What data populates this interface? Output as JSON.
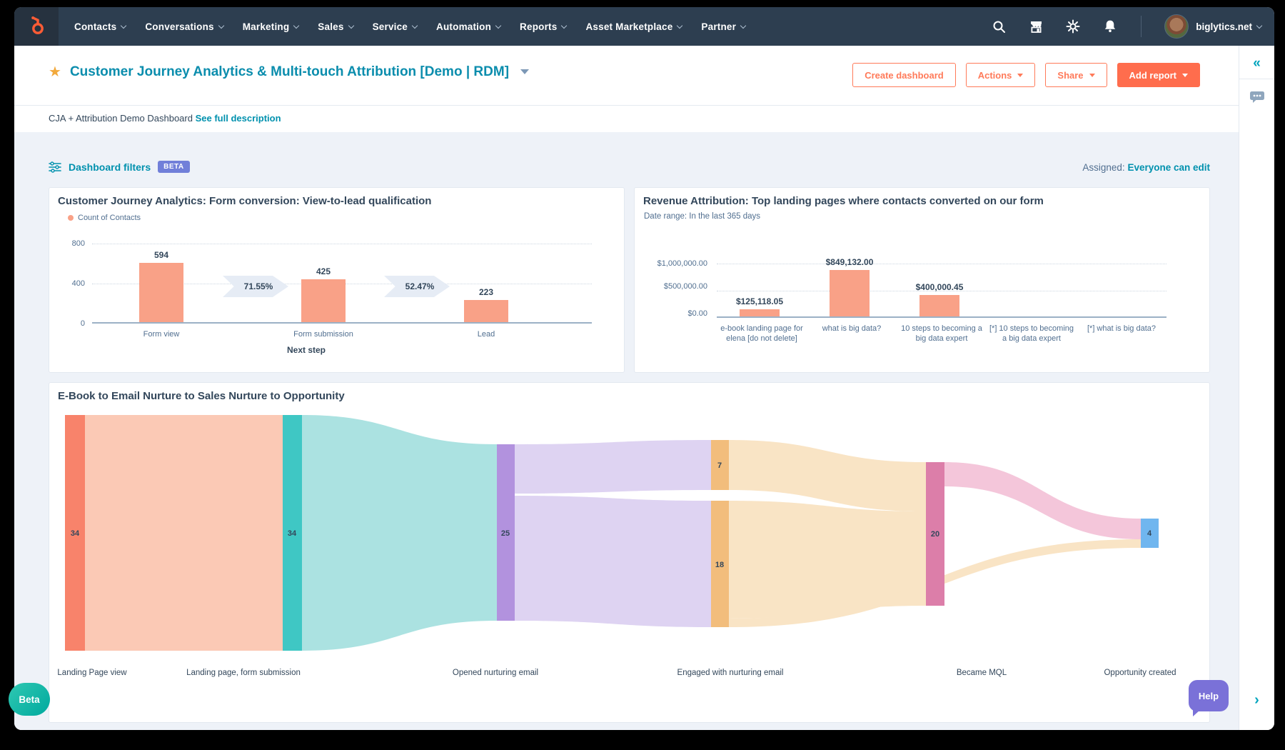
{
  "nav": {
    "items": [
      "Contacts",
      "Conversations",
      "Marketing",
      "Sales",
      "Service",
      "Automation",
      "Reports",
      "Asset Marketplace",
      "Partner"
    ],
    "account_name": "biglytics.net"
  },
  "header": {
    "title": "Customer Journey Analytics & Multi-touch Attribution [Demo | RDM]",
    "buttons": {
      "create_dashboard": "Create dashboard",
      "actions": "Actions",
      "share": "Share",
      "add_report": "Add report"
    },
    "description": "CJA + Attribution Demo Dashboard",
    "description_link": "See full description"
  },
  "filters_bar": {
    "label": "Dashboard filters",
    "beta_badge": "BETA",
    "assigned_label": "Assigned:",
    "assigned_value": "Everyone can edit"
  },
  "chart_data": [
    {
      "id": "form_conversion",
      "type": "bar",
      "title": "Customer Journey Analytics: Form conversion: View-to-lead qualification",
      "legend": [
        "Count of Contacts"
      ],
      "categories": [
        "Form view",
        "Form submission",
        "Lead"
      ],
      "values": [
        594,
        425,
        223
      ],
      "value_labels": [
        "594",
        "425",
        "223"
      ],
      "conversion_labels": [
        "71.55%",
        "52.47%"
      ],
      "xlabel": "Next step",
      "yticks": [
        "800",
        "400",
        "0"
      ],
      "ylim": [
        0,
        800
      ],
      "bar_color": "#f9a187",
      "grid": "dotted horizontal"
    },
    {
      "id": "revenue_attribution",
      "type": "bar",
      "title": "Revenue Attribution: Top landing pages where contacts converted on our form",
      "subtitle": "Date range: In the last 365 days",
      "categories": [
        "e-book landing page for elena [do not delete]",
        "what is big data?",
        "10 steps to becoming a big data expert",
        "[*] 10 steps to becoming a big data expert",
        "[*] what is big data?"
      ],
      "values": [
        125118.05,
        849132,
        400000.45,
        0,
        0
      ],
      "value_labels": [
        "$125,118.05",
        "$849,132.00",
        "$400,000.45",
        "",
        ""
      ],
      "yticks": [
        "$1,000,000.00",
        "$500,000.00",
        "$0.00"
      ],
      "ylim": [
        0,
        1000000
      ],
      "bar_color": "#f9a187",
      "grid": "dotted horizontal"
    },
    {
      "id": "journey_sankey",
      "type": "sankey",
      "title": "E-Book to Email Nurture to Sales Nurture to Opportunity",
      "stages": [
        "Landing Page view",
        "Landing page, form submission",
        "Opened nurturing email",
        "Engaged with nurturing email",
        "Became MQL",
        "Opportunity created"
      ],
      "nodes": [
        {
          "stage": "Landing Page view",
          "label": "34",
          "value": 34,
          "color": "#f8836b"
        },
        {
          "stage": "Landing page, form submission",
          "label": "34",
          "value": 34,
          "color": "#3fc7c4"
        },
        {
          "stage": "Opened nurturing email",
          "label": "25",
          "value": 25,
          "color": "#b292de"
        },
        {
          "stage": "Engaged with nurturing email",
          "label": "7",
          "value": 7,
          "color": "#f2bd7c"
        },
        {
          "stage": "Engaged with nurturing email",
          "label": "18",
          "value": 18,
          "color": "#f2bd7c"
        },
        {
          "stage": "Became MQL",
          "label": "20",
          "value": 20,
          "color": "#dc7ea9"
        },
        {
          "stage": "Opportunity created",
          "label": "4",
          "value": 4,
          "color": "#70b6ef"
        }
      ],
      "links": [
        {
          "from": "Landing Page view",
          "to": "Landing page, form submission",
          "color": "#fbc9b5"
        },
        {
          "from": "Landing page, form submission",
          "to": "Opened nurturing email",
          "color": "#abe2e1"
        },
        {
          "from": "Opened nurturing email",
          "to": "Engaged with nurturing email (7)",
          "color": "#ded3f2"
        },
        {
          "from": "Opened nurturing email",
          "to": "Engaged with nurturing email (18)",
          "color": "#ded3f2"
        },
        {
          "from": "Engaged with nurturing email (7)",
          "to": "Became MQL",
          "color": "#f9e4c5"
        },
        {
          "from": "Engaged with nurturing email (18)",
          "to": "Became MQL",
          "color": "#f9e4c5"
        },
        {
          "from": "Engaged with nurturing email (18)",
          "to": "Opportunity created",
          "color": "#f9e4c5"
        },
        {
          "from": "Became MQL",
          "to": "Opportunity created",
          "color": "#f4c6da"
        }
      ]
    }
  ],
  "floating": {
    "beta_label": "Beta",
    "help_label": "Help"
  },
  "colors": {
    "navbar": "#2d3e50",
    "accent_orange": "#ff7a59",
    "cta_orange": "#ff6d4d",
    "teal_link": "#0091ae",
    "navy_text": "#33475b",
    "bar_color": "#f9a187",
    "beta_badge": "#717fd9",
    "help_purple": "#7a71d8",
    "beta_pill_teal": "#00bda5"
  }
}
